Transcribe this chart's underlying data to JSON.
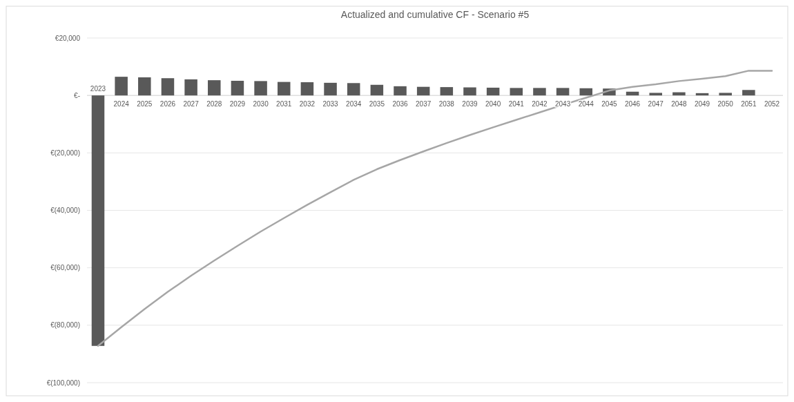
{
  "chart_data": {
    "type": "bar",
    "title": "Actualized and cumulative CF - Scenario #5",
    "categories": [
      "2023",
      "2024",
      "2025",
      "2026",
      "2027",
      "2028",
      "2029",
      "2030",
      "2031",
      "2032",
      "2033",
      "2034",
      "2035",
      "2036",
      "2037",
      "2038",
      "2039",
      "2040",
      "2041",
      "2042",
      "2043",
      "2044",
      "2045",
      "2046",
      "2047",
      "2048",
      "2049",
      "2050",
      "2051",
      "2052"
    ],
    "series": [
      {
        "color": "#595959",
        "values": [
          -87200,
          6500,
          6300,
          6000,
          5600,
          5300,
          5100,
          5000,
          4700,
          4600,
          4400,
          4300,
          3700,
          3200,
          3000,
          2900,
          2800,
          2700,
          2600,
          2600,
          2600,
          2500,
          2400,
          1300,
          900,
          1100,
          800,
          900,
          1900,
          0
        ]
      },
      {
        "type": "line",
        "color": "#a6a6a6",
        "values": [
          -87200,
          -80700,
          -74400,
          -68400,
          -62800,
          -57500,
          -52400,
          -47400,
          -42700,
          -38100,
          -33700,
          -29400,
          -25700,
          -22500,
          -19500,
          -16600,
          -13800,
          -11100,
          -8500,
          -5900,
          -3300,
          -800,
          1700,
          3000,
          3900,
          5000,
          5800,
          6700,
          8600,
          8600
        ]
      }
    ],
    "ylim": [
      -100000,
      20000
    ],
    "yticks": [
      {
        "value": 20000,
        "label": "€20,000"
      },
      {
        "value": 0,
        "label": "€-"
      },
      {
        "value": -20000,
        "label": "€(20,000)"
      },
      {
        "value": -40000,
        "label": "€(40,000)"
      },
      {
        "value": -60000,
        "label": "€(60,000)"
      },
      {
        "value": -80000,
        "label": "€(80,000)"
      },
      {
        "value": -100000,
        "label": "€(100,000)"
      }
    ],
    "grid": "y",
    "marker": "none",
    "line_style": "solid"
  }
}
